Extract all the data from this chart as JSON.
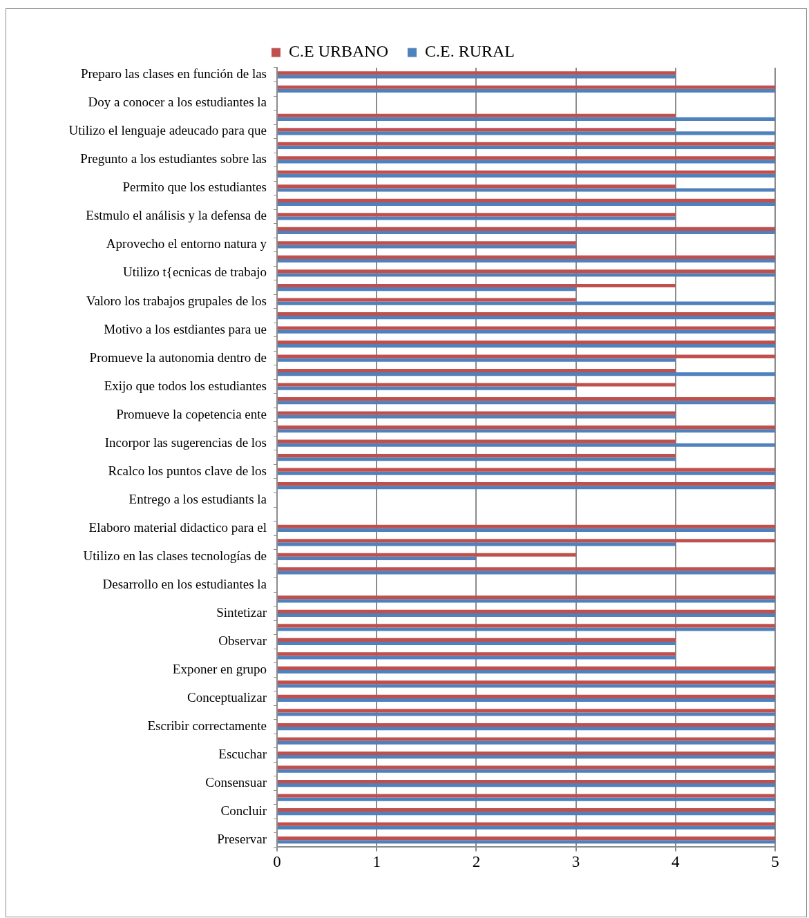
{
  "chart_data": {
    "type": "bar",
    "orientation": "horizontal",
    "legend": "top",
    "grid": "x",
    "xlim": [
      0,
      5
    ],
    "xticks": [
      0,
      1,
      2,
      3,
      4,
      5
    ],
    "categories": [
      "Preparo las clases en función de las",
      null,
      "Doy a conocer a los estudiantes la",
      null,
      "Utilizo el lenguaje adeucado para que",
      null,
      "Pregunto a los estudiantes sobre las",
      null,
      "Permito que los estudiantes",
      null,
      "Estmulo el análisis y la defensa de",
      null,
      "Aprovecho el entorno natura y",
      null,
      "Utilizo t{ecnicas de trabajo",
      null,
      "Valoro los trabajos grupales de los",
      null,
      "Motivo a los estdiantes para ue",
      null,
      "Promueve la autonomia dentro de",
      null,
      "Exijo que todos los estudiantes",
      null,
      "Promueve la copetencia ente",
      null,
      "Incorpor las sugerencias de los",
      null,
      "Rcalco los puntos clave de los",
      null,
      "Entrego a los estudiants la",
      null,
      "Elaboro material didactico para el",
      null,
      "Utilizo en las clases tecnologías de",
      null,
      "Desarrollo en los estudiantes la",
      null,
      "Sintetizar",
      null,
      "Observar",
      null,
      "Exponer en grupo",
      null,
      "Conceptualizar",
      null,
      "Escribir correctamente",
      null,
      "Escuchar",
      null,
      "Consensuar",
      null,
      "Concluir",
      null,
      "Preservar"
    ],
    "series": [
      {
        "name": "C.E URBANO",
        "color": "#c0504d",
        "values": [
          4,
          5,
          null,
          4,
          4,
          5,
          5,
          5,
          4,
          5,
          4,
          5,
          3,
          5,
          5,
          4,
          3,
          5,
          5,
          5,
          5,
          4,
          4,
          5,
          4,
          5,
          4,
          4,
          5,
          5,
          null,
          null,
          5,
          5,
          3,
          5,
          null,
          5,
          5,
          5,
          4,
          4,
          5,
          5,
          5,
          5,
          5,
          5,
          5,
          5,
          5,
          5,
          5,
          5,
          5
        ]
      },
      {
        "name": "C.E. RURAL",
        "color": "#4f81bd",
        "values": [
          4,
          5,
          null,
          5,
          5,
          5,
          5,
          5,
          5,
          5,
          4,
          5,
          3,
          5,
          5,
          3,
          5,
          5,
          5,
          5,
          4,
          5,
          3,
          5,
          4,
          5,
          5,
          4,
          5,
          5,
          null,
          null,
          5,
          4,
          2,
          5,
          null,
          5,
          5,
          5,
          4,
          4,
          5,
          5,
          5,
          5,
          5,
          5,
          5,
          5,
          5,
          5,
          5,
          5,
          5
        ]
      }
    ]
  }
}
